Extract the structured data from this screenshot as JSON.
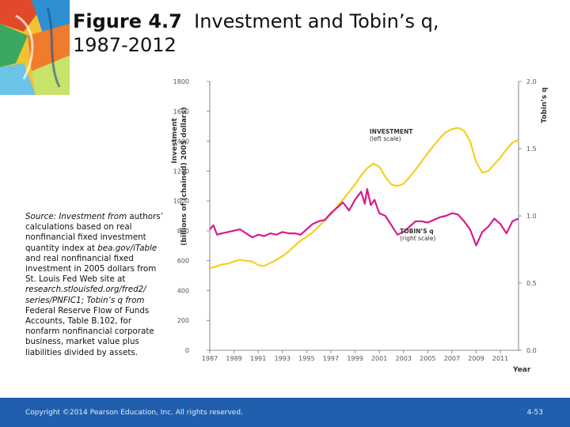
{
  "slide": {
    "title_bold": "Figure 4.7",
    "title_rest": "Investment and Tobin’s q,",
    "title_line2": "1987-2012",
    "source_parts": [
      {
        "text": "Source: Investment from",
        "italic": true
      },
      {
        "text": " authors’ calculations based on real nonfinancial fixed investment quantity index at ",
        "italic": false
      },
      {
        "text": "bea.gov/iTable",
        "italic": true
      },
      {
        "text": " and real nonfinancial fixed investment in 2005 dollars from St. Louis Fed Web site at ",
        "italic": false
      },
      {
        "text": "research.stlouisfed.org/fred2/ series/PNFIC1; Tobin’s q from",
        "italic": true
      },
      {
        "text": " Federal Reserve Flow of Funds Accounts, Table B.102, for nonfarm nonfinancial corporate business, market value plus liabilities divided by assets.",
        "italic": false
      }
    ],
    "copyright": "Copyright ©2014 Pearson Education, Inc. All rights reserved.",
    "page_number": "4-53",
    "colors": {
      "footer": "#1f5fae",
      "investment": "#f5d020",
      "tobins_q": "#d81b8c"
    }
  },
  "chart_data": {
    "type": "line",
    "left_axis_title": [
      "Investment",
      "(billions of (chained) 2005 dollars)"
    ],
    "right_axis_title": "Tobin’s q",
    "xlabel": "Year",
    "xlim": [
      1987,
      2012.5
    ],
    "x_ticks": [
      1987,
      1989,
      1991,
      1993,
      1995,
      1997,
      1999,
      2001,
      2003,
      2005,
      2007,
      2009,
      2011
    ],
    "left_ylim": [
      0,
      1800
    ],
    "left_ticks": [
      0,
      200,
      400,
      600,
      800,
      1000,
      1200,
      1400,
      1600,
      1800
    ],
    "right_ylim": [
      0,
      2.0
    ],
    "right_ticks": [
      "0.0",
      "0.5",
      "1.0",
      "1.5",
      "2.0"
    ],
    "right_tick_values": [
      0,
      0.5,
      1.0,
      1.5,
      2.0
    ],
    "series": [
      {
        "name": "INVESTMENT",
        "name_sub": "(left scale)",
        "axis": "left",
        "points": [
          [
            1987.0,
            550
          ],
          [
            1987.5,
            560
          ],
          [
            1988.0,
            575
          ],
          [
            1988.5,
            580
          ],
          [
            1989.0,
            595
          ],
          [
            1989.5,
            605
          ],
          [
            1990.0,
            600
          ],
          [
            1990.5,
            595
          ],
          [
            1991.0,
            570
          ],
          [
            1991.5,
            565
          ],
          [
            1992.0,
            585
          ],
          [
            1992.5,
            605
          ],
          [
            1993.0,
            630
          ],
          [
            1993.5,
            660
          ],
          [
            1994.0,
            700
          ],
          [
            1994.5,
            735
          ],
          [
            1995.0,
            760
          ],
          [
            1995.5,
            790
          ],
          [
            1996.0,
            830
          ],
          [
            1996.5,
            870
          ],
          [
            1997.0,
            910
          ],
          [
            1997.5,
            960
          ],
          [
            1998.0,
            1010
          ],
          [
            1998.5,
            1060
          ],
          [
            1999.0,
            1110
          ],
          [
            1999.5,
            1170
          ],
          [
            2000.0,
            1220
          ],
          [
            2000.5,
            1250
          ],
          [
            2001.0,
            1230
          ],
          [
            2001.5,
            1160
          ],
          [
            2002.0,
            1110
          ],
          [
            2002.5,
            1100
          ],
          [
            2003.0,
            1115
          ],
          [
            2003.5,
            1160
          ],
          [
            2004.0,
            1210
          ],
          [
            2004.5,
            1265
          ],
          [
            2005.0,
            1320
          ],
          [
            2005.5,
            1370
          ],
          [
            2006.0,
            1420
          ],
          [
            2006.5,
            1460
          ],
          [
            2007.0,
            1480
          ],
          [
            2007.5,
            1490
          ],
          [
            2008.0,
            1470
          ],
          [
            2008.5,
            1400
          ],
          [
            2009.0,
            1260
          ],
          [
            2009.5,
            1190
          ],
          [
            2010.0,
            1200
          ],
          [
            2010.5,
            1245
          ],
          [
            2011.0,
            1290
          ],
          [
            2011.5,
            1345
          ],
          [
            2012.0,
            1390
          ],
          [
            2012.5,
            1410
          ]
        ]
      },
      {
        "name": "TOBIN’S q",
        "name_sub": "(right scale)",
        "axis": "right",
        "points": [
          [
            1987.0,
            0.9
          ],
          [
            1987.3,
            0.93
          ],
          [
            1987.6,
            0.86
          ],
          [
            1988.0,
            0.87
          ],
          [
            1988.5,
            0.88
          ],
          [
            1989.0,
            0.89
          ],
          [
            1989.5,
            0.9
          ],
          [
            1990.0,
            0.87
          ],
          [
            1990.5,
            0.84
          ],
          [
            1991.0,
            0.86
          ],
          [
            1991.5,
            0.85
          ],
          [
            1992.0,
            0.87
          ],
          [
            1992.5,
            0.86
          ],
          [
            1993.0,
            0.88
          ],
          [
            1993.5,
            0.87
          ],
          [
            1994.0,
            0.87
          ],
          [
            1994.5,
            0.86
          ],
          [
            1995.0,
            0.9
          ],
          [
            1995.5,
            0.94
          ],
          [
            1996.0,
            0.96
          ],
          [
            1996.5,
            0.97
          ],
          [
            1997.0,
            1.02
          ],
          [
            1997.5,
            1.06
          ],
          [
            1998.0,
            1.1
          ],
          [
            1998.5,
            1.04
          ],
          [
            1999.0,
            1.12
          ],
          [
            1999.5,
            1.18
          ],
          [
            1999.8,
            1.09
          ],
          [
            2000.0,
            1.2
          ],
          [
            2000.3,
            1.08
          ],
          [
            2000.6,
            1.12
          ],
          [
            2001.0,
            1.02
          ],
          [
            2001.5,
            1.0
          ],
          [
            2002.0,
            0.93
          ],
          [
            2002.5,
            0.86
          ],
          [
            2003.0,
            0.88
          ],
          [
            2003.5,
            0.92
          ],
          [
            2004.0,
            0.96
          ],
          [
            2004.5,
            0.96
          ],
          [
            2005.0,
            0.95
          ],
          [
            2005.5,
            0.97
          ],
          [
            2006.0,
            0.99
          ],
          [
            2006.5,
            1.0
          ],
          [
            2007.0,
            1.02
          ],
          [
            2007.5,
            1.01
          ],
          [
            2008.0,
            0.96
          ],
          [
            2008.5,
            0.9
          ],
          [
            2009.0,
            0.78
          ],
          [
            2009.5,
            0.88
          ],
          [
            2010.0,
            0.92
          ],
          [
            2010.5,
            0.98
          ],
          [
            2011.0,
            0.94
          ],
          [
            2011.5,
            0.87
          ],
          [
            2012.0,
            0.96
          ],
          [
            2012.5,
            0.98
          ]
        ]
      }
    ],
    "grid": false
  }
}
